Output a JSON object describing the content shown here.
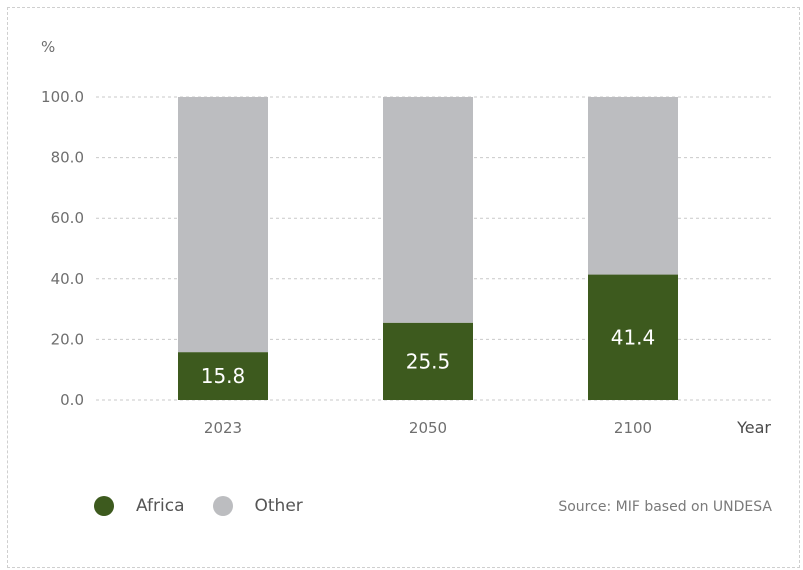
{
  "chart_data": {
    "type": "bar",
    "stacked": true,
    "unit_label": "%",
    "xlabel": "Year",
    "categories": [
      "2023",
      "2050",
      "2100"
    ],
    "series": [
      {
        "name": "Africa",
        "color": "#3d5a1e",
        "values": [
          15.8,
          25.5,
          41.4
        ]
      },
      {
        "name": "Other",
        "color": "#bcbdc0",
        "values": [
          84.2,
          74.5,
          58.6
        ]
      }
    ],
    "data_labels": [
      "15.8",
      "25.5",
      "41.4"
    ],
    "ylim": [
      0,
      100
    ],
    "yticks": [
      "0.0",
      "20.0",
      "40.0",
      "60.0",
      "80.0",
      "100.0"
    ],
    "grid": true,
    "legend_position": "bottom-left"
  },
  "legend": {
    "items": [
      {
        "label": "Africa",
        "color": "#3d5a1e"
      },
      {
        "label": "Other",
        "color": "#bcbdc0"
      }
    ]
  },
  "source": "Source: MIF based on UNDESA"
}
